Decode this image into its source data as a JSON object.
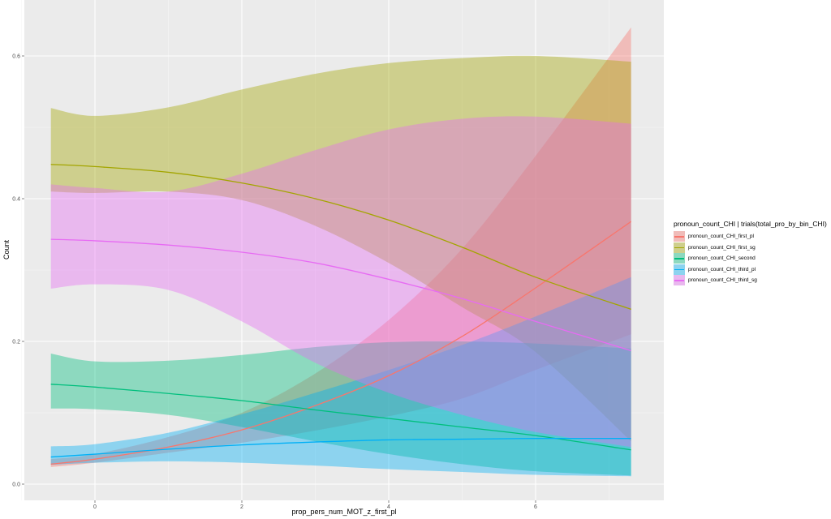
{
  "chart_data": {
    "type": "line",
    "title": "",
    "xlabel": "prop_pers_num_MOT_z_first_pl",
    "ylabel": "Count",
    "xlim": [
      -0.85,
      7.75
    ],
    "ylim": [
      -0.025,
      0.67
    ],
    "x_ticks": [
      0,
      2,
      4,
      6
    ],
    "y_ticks": [
      0.0,
      0.2,
      0.4,
      0.6
    ],
    "x_tick_labels": [
      "0",
      "2",
      "4",
      "6"
    ],
    "y_tick_labels": [
      "0.0",
      "0.2",
      "0.4",
      "0.6"
    ],
    "grid": true,
    "legend_position": "right",
    "legend_title": "pronoun_count_CHI | trials(total_pro_by_bin_CHI)",
    "x": [
      -0.6,
      0,
      1,
      2,
      3,
      4,
      5,
      6,
      7.3
    ],
    "series": [
      {
        "name": "pronoun_count_CHI_first_pl",
        "color": "#F8766D",
        "values": [
          0.028,
          0.035,
          0.052,
          0.076,
          0.11,
          0.152,
          0.207,
          0.275,
          0.368
        ],
        "lower": [
          0.024,
          0.03,
          0.044,
          0.058,
          0.075,
          0.095,
          0.12,
          0.16,
          0.21
        ],
        "upper": [
          0.035,
          0.042,
          0.066,
          0.1,
          0.155,
          0.23,
          0.33,
          0.46,
          0.64
        ]
      },
      {
        "name": "pronoun_count_CHI_first_sg",
        "color": "#A3A500",
        "values": [
          0.448,
          0.445,
          0.437,
          0.422,
          0.4,
          0.37,
          0.332,
          0.29,
          0.245
        ],
        "lower": [
          0.41,
          0.408,
          0.41,
          0.398,
          0.362,
          0.31,
          0.248,
          0.185,
          0.06
        ],
        "upper": [
          0.527,
          0.516,
          0.528,
          0.553,
          0.575,
          0.59,
          0.597,
          0.6,
          0.592
        ]
      },
      {
        "name": "pronoun_count_CHI_second",
        "color": "#00BF7D",
        "values": [
          0.14,
          0.136,
          0.127,
          0.117,
          0.104,
          0.092,
          0.08,
          0.068,
          0.048
        ],
        "lower": [
          0.106,
          0.105,
          0.097,
          0.08,
          0.06,
          0.042,
          0.028,
          0.018,
          0.012
        ],
        "upper": [
          0.183,
          0.172,
          0.173,
          0.181,
          0.192,
          0.199,
          0.2,
          0.197,
          0.19
        ]
      },
      {
        "name": "pronoun_count_CHI_third_pl",
        "color": "#00B0F6",
        "values": [
          0.038,
          0.042,
          0.049,
          0.055,
          0.059,
          0.062,
          0.063,
          0.064,
          0.064
        ],
        "lower": [
          0.027,
          0.03,
          0.032,
          0.03,
          0.026,
          0.021,
          0.017,
          0.013,
          0.011
        ],
        "upper": [
          0.053,
          0.056,
          0.072,
          0.098,
          0.128,
          0.16,
          0.195,
          0.235,
          0.29
        ]
      },
      {
        "name": "pronoun_count_CHI_third_sg",
        "color": "#E76BF3",
        "values": [
          0.343,
          0.341,
          0.335,
          0.325,
          0.31,
          0.287,
          0.26,
          0.228,
          0.187
        ],
        "lower": [
          0.274,
          0.28,
          0.272,
          0.228,
          0.17,
          0.128,
          0.097,
          0.073,
          0.052
        ],
        "upper": [
          0.42,
          0.415,
          0.41,
          0.435,
          0.468,
          0.497,
          0.512,
          0.515,
          0.505
        ]
      }
    ]
  }
}
